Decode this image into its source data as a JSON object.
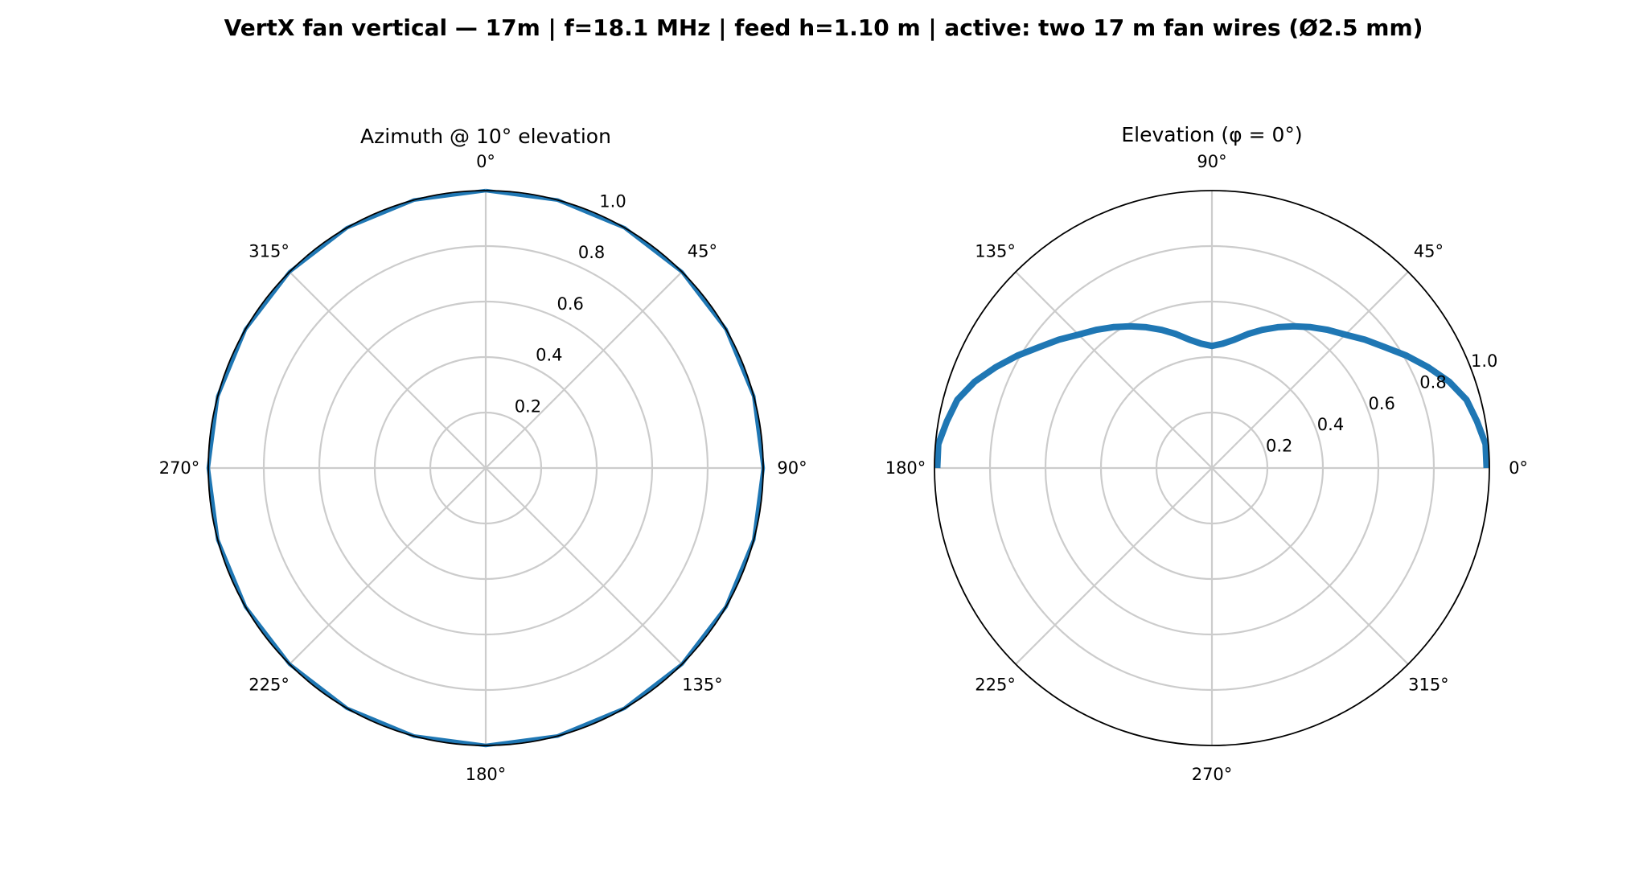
{
  "figure": {
    "title": "VertX fan vertical — 17m  |  f=18.1 MHz  |  feed h=1.10 m  |  active: two 17 m fan wires (Ø2.5 mm)"
  },
  "chart_data": [
    {
      "type": "polar-line",
      "title": "Azimuth @ 10° elevation",
      "theta_zero": "N",
      "theta_direction": "clockwise",
      "theta_ticks_deg": [
        0,
        45,
        90,
        135,
        180,
        225,
        270,
        315
      ],
      "theta_tick_labels": [
        "0°",
        "45°",
        "90°",
        "135°",
        "180°",
        "225°",
        "270°",
        "315°"
      ],
      "r_ticks": [
        0.2,
        0.4,
        0.6,
        0.8,
        1.0
      ],
      "r_tick_labels": [
        "0.2",
        "0.4",
        "0.6",
        "0.8",
        "1.0"
      ],
      "rlim": [
        0,
        1.0
      ],
      "grid": true,
      "series": [
        {
          "theta_deg": [
            0,
            15,
            30,
            45,
            60,
            75,
            90,
            105,
            120,
            135,
            150,
            165,
            180,
            195,
            210,
            225,
            240,
            255,
            270,
            285,
            300,
            315,
            330,
            345,
            360
          ],
          "r": [
            1.0,
            1.0,
            1.0,
            1.0,
            1.0,
            1.0,
            1.0,
            1.0,
            1.0,
            1.0,
            1.0,
            1.0,
            1.0,
            1.0,
            1.0,
            1.0,
            1.0,
            1.0,
            1.0,
            1.0,
            1.0,
            1.0,
            1.0,
            1.0,
            1.0
          ],
          "color": "#1f77b4"
        }
      ]
    },
    {
      "type": "polar-line",
      "title": "Elevation (φ = 0°)",
      "theta_zero": "E",
      "theta_direction": "counterclockwise",
      "theta_ticks_deg": [
        0,
        45,
        90,
        135,
        180,
        225,
        270,
        315
      ],
      "theta_tick_labels": [
        "0°",
        "45°",
        "90°",
        "135°",
        "180°",
        "225°",
        "270°",
        "315°"
      ],
      "r_ticks": [
        0.2,
        0.4,
        0.6,
        0.8,
        1.0
      ],
      "r_tick_labels": [
        "0.2",
        "0.4",
        "0.6",
        "0.8",
        "1.0"
      ],
      "rlim": [
        0,
        1.0
      ],
      "grid": true,
      "series": [
        {
          "theta_deg": [
            0,
            5,
            10,
            15,
            20,
            25,
            30,
            35,
            40,
            45,
            50,
            55,
            60,
            65,
            70,
            75,
            80,
            85,
            90,
            95,
            100,
            105,
            110,
            115,
            120,
            125,
            130,
            135,
            140,
            145,
            150,
            155,
            160,
            165,
            170,
            175,
            180
          ],
          "r": [
            0.99,
            0.99,
            0.97,
            0.95,
            0.91,
            0.86,
            0.81,
            0.76,
            0.72,
            0.68,
            0.65,
            0.62,
            0.59,
            0.56,
            0.53,
            0.5,
            0.47,
            0.45,
            0.44,
            0.45,
            0.47,
            0.5,
            0.53,
            0.56,
            0.59,
            0.62,
            0.65,
            0.68,
            0.72,
            0.76,
            0.81,
            0.86,
            0.91,
            0.95,
            0.97,
            0.99,
            0.99
          ],
          "color": "#1f77b4"
        }
      ]
    }
  ]
}
